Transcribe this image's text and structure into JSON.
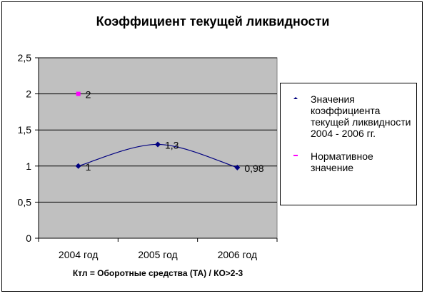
{
  "chart_data": {
    "type": "line",
    "title": "Коэффициент текущей ликвидности",
    "xlabel": "Ктл = Оборотные средства (ТА) / КО>2-3",
    "categories": [
      "2004 год",
      "2005 год",
      "2006 год"
    ],
    "ylim": [
      0,
      2.5
    ],
    "yticks": [
      "0",
      "0,5",
      "1",
      "1,5",
      "2",
      "2,5"
    ],
    "grid": true,
    "legend_position": "right",
    "series": [
      {
        "name": "Значения коэффициента текущей ликвидности 2004 - 2006 гг.",
        "values": [
          1,
          1.3,
          0.98
        ],
        "labels": [
          "1",
          "1,3",
          "0,98"
        ],
        "color": "#000080",
        "marker": "diamond",
        "smooth": true
      },
      {
        "name": "Нормативное значение",
        "values": [
          2,
          null,
          null
        ],
        "labels": [
          "2",
          "",
          ""
        ],
        "color": "#ff00ff",
        "marker": "square"
      }
    ]
  },
  "plot_bg": "#c0c0c0"
}
